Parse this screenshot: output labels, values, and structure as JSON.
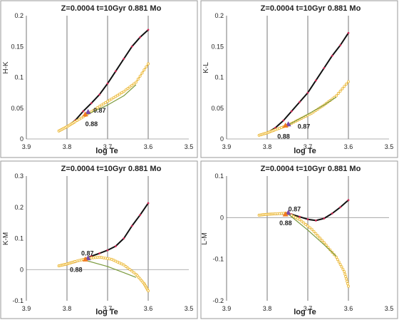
{
  "colors": {
    "black_line": "#111111",
    "black_markers": "#cc2a55",
    "orange": "#e8b028",
    "green": "#7a9a3c",
    "tri_orange": "#f07a20",
    "tri_purple": "#7a4aa8",
    "panel_border": "#9a9a9a"
  },
  "chart_data": [
    {
      "type": "line",
      "title": "Z=0.0004   t=10Gyr   0.881 Mo",
      "xlabel": "log Te",
      "ylabel": "H-K",
      "xlim": [
        3.9,
        3.5
      ],
      "ylim": [
        0,
        0.2
      ],
      "x_ticks": [
        "3.9",
        "3.8",
        "3.7",
        "3.6",
        "3.5"
      ],
      "y_ticks": [
        "0",
        "0.05",
        "0.1",
        "0.15",
        "0.2"
      ],
      "series": [
        {
          "color": "black",
          "x": [
            3.82,
            3.8,
            3.78,
            3.76,
            3.74,
            3.72,
            3.7,
            3.68,
            3.66,
            3.64,
            3.62,
            3.6
          ],
          "y": [
            0.013,
            0.02,
            0.03,
            0.045,
            0.058,
            0.072,
            0.09,
            0.11,
            0.13,
            0.15,
            0.165,
            0.177
          ]
        },
        {
          "color": "orange",
          "x": [
            3.82,
            3.8,
            3.78,
            3.75,
            3.72,
            3.69,
            3.66,
            3.63,
            3.6
          ],
          "y": [
            0.013,
            0.02,
            0.028,
            0.04,
            0.053,
            0.065,
            0.077,
            0.092,
            0.122
          ]
        },
        {
          "color": "green",
          "x": [
            3.75,
            3.7,
            3.66,
            3.63
          ],
          "y": [
            0.04,
            0.055,
            0.07,
            0.088
          ]
        }
      ],
      "annotations": [
        {
          "text": "0.87",
          "x": 3.735,
          "y": 0.046
        },
        {
          "text": "0.88",
          "x": 3.755,
          "y": 0.024
        }
      ],
      "triangles": [
        {
          "name": "0.87",
          "x": 3.748,
          "y": 0.044,
          "color": "tri_purple"
        },
        {
          "name": "0.88",
          "x": 3.755,
          "y": 0.04,
          "color": "tri_orange"
        }
      ]
    },
    {
      "type": "line",
      "title": "Z=0.0004   t=10Gyr   0.881 Mo",
      "xlabel": "log Te",
      "ylabel": "K-L",
      "xlim": [
        3.9,
        3.5
      ],
      "ylim": [
        0,
        0.2
      ],
      "x_ticks": [
        "3.9",
        "3.8",
        "3.7",
        "3.6",
        "3.5"
      ],
      "y_ticks": [
        "0",
        "0.05",
        "0.1",
        "0.15",
        "0.2"
      ],
      "series": [
        {
          "color": "black",
          "x": [
            3.82,
            3.8,
            3.78,
            3.76,
            3.74,
            3.72,
            3.7,
            3.68,
            3.66,
            3.64,
            3.62,
            3.6
          ],
          "y": [
            0.006,
            0.01,
            0.018,
            0.03,
            0.045,
            0.06,
            0.075,
            0.095,
            0.115,
            0.135,
            0.152,
            0.172
          ]
        },
        {
          "color": "orange",
          "x": [
            3.82,
            3.8,
            3.78,
            3.75,
            3.72,
            3.69,
            3.66,
            3.63,
            3.6
          ],
          "y": [
            0.006,
            0.01,
            0.015,
            0.022,
            0.032,
            0.042,
            0.055,
            0.07,
            0.093
          ]
        },
        {
          "color": "green",
          "x": [
            3.75,
            3.7,
            3.66,
            3.63
          ],
          "y": [
            0.022,
            0.04,
            0.055,
            0.068
          ]
        }
      ],
      "annotations": [
        {
          "text": "0.87",
          "x": 3.725,
          "y": 0.02
        },
        {
          "text": "0.88",
          "x": 3.775,
          "y": 0.004
        }
      ],
      "triangles": [
        {
          "name": "0.87",
          "x": 3.748,
          "y": 0.024,
          "color": "tri_purple"
        },
        {
          "name": "0.88",
          "x": 3.755,
          "y": 0.022,
          "color": "tri_orange"
        }
      ]
    },
    {
      "type": "line",
      "title": "Z=0.0004   t=10Gyr   0.881 Mo",
      "xlabel": "log Te",
      "ylabel": "K-M",
      "xlim": [
        3.9,
        3.5
      ],
      "ylim": [
        -0.1,
        0.3
      ],
      "x_ticks": [
        "3.9",
        "3.8",
        "3.7",
        "3.6",
        "3.5"
      ],
      "y_ticks": [
        "-0.1",
        "0",
        "0.1",
        "0.2",
        "0.3"
      ],
      "series": [
        {
          "color": "black",
          "x": [
            3.82,
            3.8,
            3.78,
            3.76,
            3.74,
            3.72,
            3.7,
            3.68,
            3.66,
            3.64,
            3.62,
            3.6
          ],
          "y": [
            0.012,
            0.017,
            0.024,
            0.033,
            0.043,
            0.052,
            0.062,
            0.075,
            0.1,
            0.14,
            0.175,
            0.213
          ]
        },
        {
          "color": "orange",
          "x": [
            3.82,
            3.8,
            3.78,
            3.75,
            3.72,
            3.69,
            3.66,
            3.63,
            3.61,
            3.6
          ],
          "y": [
            0.012,
            0.018,
            0.026,
            0.036,
            0.04,
            0.033,
            0.015,
            -0.015,
            -0.045,
            -0.068
          ]
        },
        {
          "color": "green",
          "x": [
            3.75,
            3.7,
            3.66,
            3.63
          ],
          "y": [
            0.028,
            0.01,
            -0.01,
            -0.025
          ]
        }
      ],
      "annotations": [
        {
          "text": "0.87",
          "x": 3.765,
          "y": 0.052
        },
        {
          "text": "0.88",
          "x": 3.793,
          "y": 0.0
        }
      ],
      "triangles": [
        {
          "name": "0.87",
          "x": 3.748,
          "y": 0.037,
          "color": "tri_purple"
        },
        {
          "name": "0.88",
          "x": 3.755,
          "y": 0.033,
          "color": "tri_orange"
        }
      ]
    },
    {
      "type": "line",
      "title": "Z=0.0004   t=10Gyr   0.881 Mo",
      "xlabel": "log Te",
      "ylabel": "L-M",
      "xlim": [
        3.9,
        3.5
      ],
      "ylim": [
        -0.2,
        0.1
      ],
      "x_ticks": [
        "3.9",
        "3.8",
        "3.7",
        "3.6",
        "3.5"
      ],
      "y_ticks": [
        "-0.2",
        "-0.1",
        "0",
        "0.1"
      ],
      "series": [
        {
          "color": "black",
          "x": [
            3.82,
            3.8,
            3.78,
            3.76,
            3.74,
            3.72,
            3.7,
            3.68,
            3.66,
            3.64,
            3.62,
            3.6
          ],
          "y": [
            0.006,
            0.007,
            0.008,
            0.009,
            0.008,
            0.002,
            -0.004,
            -0.007,
            -0.002,
            0.01,
            0.025,
            0.042
          ]
        },
        {
          "color": "orange",
          "x": [
            3.82,
            3.8,
            3.78,
            3.75,
            3.72,
            3.69,
            3.66,
            3.63,
            3.61,
            3.6
          ],
          "y": [
            0.006,
            0.008,
            0.009,
            0.011,
            -0.005,
            -0.028,
            -0.06,
            -0.095,
            -0.13,
            -0.165
          ]
        },
        {
          "color": "green",
          "x": [
            3.75,
            3.7,
            3.66,
            3.63
          ],
          "y": [
            0.01,
            -0.03,
            -0.065,
            -0.093
          ]
        }
      ],
      "annotations": [
        {
          "text": "0.87",
          "x": 3.748,
          "y": 0.02
        },
        {
          "text": "0.88",
          "x": 3.77,
          "y": -0.013
        }
      ],
      "triangles": [
        {
          "name": "0.87",
          "x": 3.748,
          "y": 0.012,
          "color": "tri_purple"
        },
        {
          "name": "0.88",
          "x": 3.755,
          "y": 0.008,
          "color": "tri_orange"
        }
      ]
    }
  ]
}
